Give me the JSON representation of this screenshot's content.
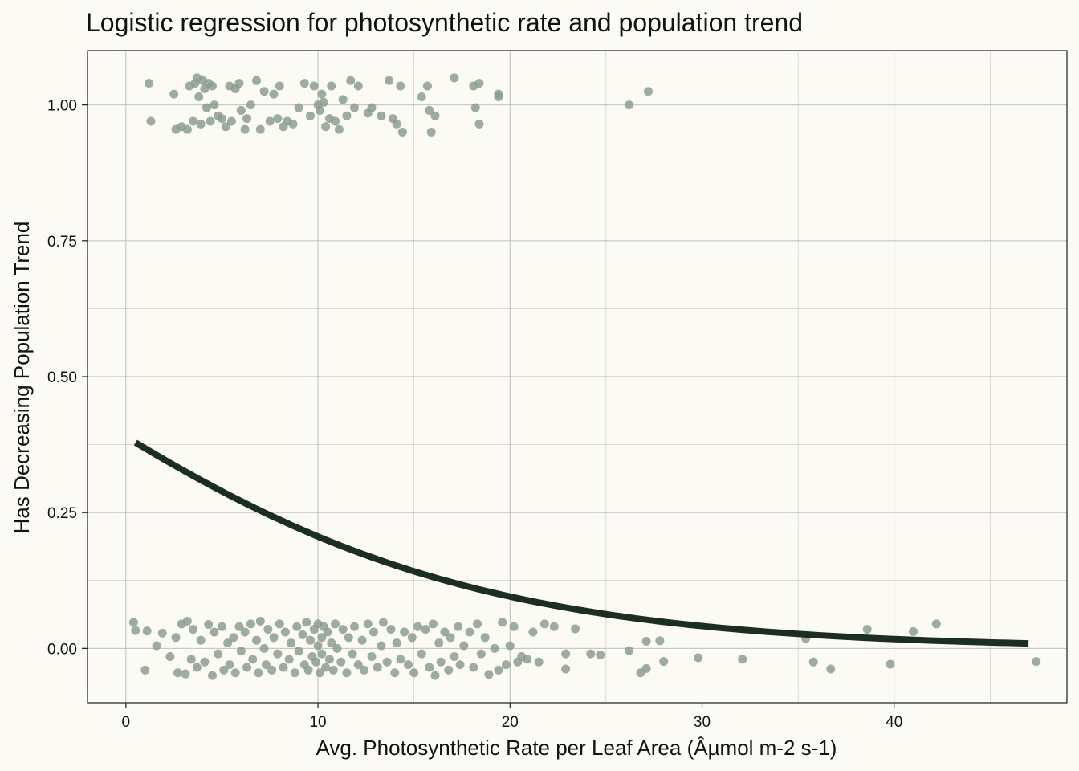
{
  "chart_data": {
    "type": "scatter",
    "title": "Logistic regression for photosynthetic rate and population trend",
    "xlabel": "Avg. Photosynthetic Rate per Leaf Area (Âµmol m-2 s-1)",
    "ylabel": "Has Decreasing Population Trend",
    "xlim": [
      -2,
      49
    ],
    "ylim": [
      -0.1,
      1.1
    ],
    "x_ticks": [
      0,
      10,
      20,
      30,
      40
    ],
    "x_tick_labels": [
      "0",
      "10",
      "20",
      "30",
      "40"
    ],
    "y_ticks": [
      0,
      0.25,
      0.5,
      0.75,
      1.0
    ],
    "y_tick_labels": [
      "0.00",
      "0.25",
      "0.50",
      "0.75",
      "1.00"
    ],
    "grid": true,
    "colors": {
      "background": "#fbfaf5",
      "points": "#879b8b",
      "curve": "#1c2e21",
      "grid": "#b8b8b4"
    },
    "series": [
      {
        "type": "scatter",
        "points": [
          [
            1.2,
            1.04
          ],
          [
            1.3,
            0.97
          ],
          [
            2.5,
            1.02
          ],
          [
            2.6,
            0.955
          ],
          [
            2.9,
            0.96
          ],
          [
            3.2,
            0.955
          ],
          [
            3.3,
            1.035
          ],
          [
            3.5,
            0.97
          ],
          [
            3.6,
            1.04
          ],
          [
            3.7,
            1.05
          ],
          [
            3.8,
            1.015
          ],
          [
            3.9,
            0.965
          ],
          [
            4.0,
            1.045
          ],
          [
            4.1,
            1.03
          ],
          [
            4.2,
            0.995
          ],
          [
            4.3,
            1.04
          ],
          [
            4.4,
            0.97
          ],
          [
            4.5,
            1.035
          ],
          [
            4.6,
            1.0
          ],
          [
            4.8,
            0.98
          ],
          [
            5.0,
            0.975
          ],
          [
            5.2,
            0.96
          ],
          [
            5.4,
            1.035
          ],
          [
            5.5,
            0.97
          ],
          [
            5.7,
            1.03
          ],
          [
            5.9,
            1.04
          ],
          [
            6.0,
            0.99
          ],
          [
            6.2,
            0.955
          ],
          [
            6.3,
            0.975
          ],
          [
            6.5,
            1.0
          ],
          [
            6.8,
            1.045
          ],
          [
            7.0,
            0.955
          ],
          [
            7.2,
            1.025
          ],
          [
            7.5,
            0.97
          ],
          [
            7.7,
            1.02
          ],
          [
            7.9,
            0.975
          ],
          [
            8.0,
            1.035
          ],
          [
            8.2,
            0.96
          ],
          [
            8.4,
            0.97
          ],
          [
            8.7,
            0.965
          ],
          [
            9.0,
            0.995
          ],
          [
            9.3,
            1.04
          ],
          [
            9.6,
            0.98
          ],
          [
            9.8,
            1.035
          ],
          [
            10.0,
            1.0
          ],
          [
            10.1,
            0.99
          ],
          [
            10.2,
            1.02
          ],
          [
            10.3,
            1.005
          ],
          [
            10.4,
            0.96
          ],
          [
            10.6,
            0.975
          ],
          [
            10.7,
            1.035
          ],
          [
            10.9,
            0.97
          ],
          [
            11.1,
            0.955
          ],
          [
            11.3,
            1.01
          ],
          [
            11.5,
            0.98
          ],
          [
            11.7,
            1.045
          ],
          [
            11.9,
            0.995
          ],
          [
            12.1,
            1.035
          ],
          [
            12.6,
            0.985
          ],
          [
            12.8,
            0.995
          ],
          [
            13.3,
            0.98
          ],
          [
            13.7,
            1.045
          ],
          [
            13.9,
            0.975
          ],
          [
            14.1,
            0.965
          ],
          [
            14.3,
            1.035
          ],
          [
            14.4,
            0.95
          ],
          [
            15.4,
            1.015
          ],
          [
            15.7,
            1.035
          ],
          [
            15.8,
            0.99
          ],
          [
            15.9,
            0.95
          ],
          [
            16.1,
            0.98
          ],
          [
            17.1,
            1.05
          ],
          [
            18.1,
            1.035
          ],
          [
            18.2,
            0.995
          ],
          [
            18.4,
            1.04
          ],
          [
            18.4,
            0.965
          ],
          [
            19.4,
            1.02
          ],
          [
            19.4,
            1.015
          ],
          [
            26.2,
            1.0
          ],
          [
            27.2,
            1.025
          ],
          [
            0.4,
            0.048
          ],
          [
            0.5,
            0.033
          ],
          [
            1.0,
            -0.04
          ],
          [
            1.1,
            0.032
          ],
          [
            1.6,
            0.005
          ],
          [
            1.9,
            0.028
          ],
          [
            2.3,
            -0.015
          ],
          [
            2.6,
            0.02
          ],
          [
            2.7,
            -0.045
          ],
          [
            2.9,
            0.045
          ],
          [
            3.1,
            -0.047
          ],
          [
            3.2,
            0.05
          ],
          [
            3.4,
            -0.02
          ],
          [
            3.5,
            0.035
          ],
          [
            3.7,
            -0.035
          ],
          [
            3.9,
            0.015
          ],
          [
            4.1,
            -0.025
          ],
          [
            4.3,
            0.044
          ],
          [
            4.5,
            -0.05
          ],
          [
            4.6,
            0.03
          ],
          [
            4.8,
            -0.01
          ],
          [
            5.0,
            0.04
          ],
          [
            5.1,
            -0.04
          ],
          [
            5.3,
            0.01
          ],
          [
            5.4,
            -0.03
          ],
          [
            5.6,
            0.02
          ],
          [
            5.7,
            -0.045
          ],
          [
            5.9,
            0.04
          ],
          [
            6.0,
            -0.005
          ],
          [
            6.2,
            0.03
          ],
          [
            6.3,
            -0.035
          ],
          [
            6.5,
            0.045
          ],
          [
            6.6,
            -0.02
          ],
          [
            6.8,
            0.015
          ],
          [
            6.9,
            -0.045
          ],
          [
            7.0,
            0.05
          ],
          [
            7.2,
            0.0
          ],
          [
            7.3,
            -0.03
          ],
          [
            7.4,
            0.035
          ],
          [
            7.6,
            -0.04
          ],
          [
            7.7,
            0.02
          ],
          [
            7.9,
            -0.01
          ],
          [
            8.0,
            0.045
          ],
          [
            8.2,
            -0.035
          ],
          [
            8.3,
            0.03
          ],
          [
            8.5,
            -0.02
          ],
          [
            8.6,
            0.01
          ],
          [
            8.8,
            -0.045
          ],
          [
            8.9,
            0.04
          ],
          [
            9.0,
            -0.005
          ],
          [
            9.2,
            0.025
          ],
          [
            9.3,
            -0.03
          ],
          [
            9.4,
            0.048
          ],
          [
            9.5,
            -0.04
          ],
          [
            9.6,
            0.015
          ],
          [
            9.7,
            -0.015
          ],
          [
            9.8,
            0.035
          ],
          [
            9.9,
            -0.025
          ],
          [
            10.0,
            0.045
          ],
          [
            10.0,
            0.005
          ],
          [
            10.1,
            -0.045
          ],
          [
            10.2,
            0.02
          ],
          [
            10.2,
            -0.01
          ],
          [
            10.3,
            0.04
          ],
          [
            10.4,
            -0.035
          ],
          [
            10.5,
            0.03
          ],
          [
            10.6,
            -0.02
          ],
          [
            10.7,
            0.01
          ],
          [
            10.8,
            -0.04
          ],
          [
            10.9,
            0.045
          ],
          [
            11.0,
            0.0
          ],
          [
            11.2,
            -0.025
          ],
          [
            11.3,
            0.035
          ],
          [
            11.5,
            -0.045
          ],
          [
            11.6,
            0.02
          ],
          [
            11.8,
            -0.01
          ],
          [
            11.9,
            0.04
          ],
          [
            12.1,
            -0.03
          ],
          [
            12.3,
            0.015
          ],
          [
            12.4,
            -0.04
          ],
          [
            12.6,
            0.045
          ],
          [
            12.8,
            -0.015
          ],
          [
            12.9,
            0.03
          ],
          [
            13.1,
            -0.035
          ],
          [
            13.3,
            0.005
          ],
          [
            13.4,
            0.048
          ],
          [
            13.6,
            -0.025
          ],
          [
            13.8,
            0.035
          ],
          [
            14.0,
            -0.045
          ],
          [
            14.1,
            0.01
          ],
          [
            14.3,
            -0.02
          ],
          [
            14.5,
            0.03
          ],
          [
            14.7,
            -0.03
          ],
          [
            14.9,
            0.02
          ],
          [
            15.0,
            -0.045
          ],
          [
            15.2,
            0.04
          ],
          [
            15.4,
            -0.01
          ],
          [
            15.6,
            0.035
          ],
          [
            15.8,
            -0.035
          ],
          [
            16.0,
            0.045
          ],
          [
            16.1,
            -0.05
          ],
          [
            16.3,
            0.01
          ],
          [
            16.4,
            -0.025
          ],
          [
            16.6,
            0.03
          ],
          [
            16.8,
            -0.04
          ],
          [
            16.9,
            0.02
          ],
          [
            17.1,
            -0.015
          ],
          [
            17.3,
            0.04
          ],
          [
            17.4,
            -0.03
          ],
          [
            17.6,
            0.005
          ],
          [
            17.9,
            0.03
          ],
          [
            18.1,
            -0.035
          ],
          [
            18.3,
            0.045
          ],
          [
            18.5,
            -0.01
          ],
          [
            18.7,
            0.02
          ],
          [
            18.9,
            -0.048
          ],
          [
            19.2,
            0.0
          ],
          [
            19.4,
            -0.04
          ],
          [
            19.6,
            0.048
          ],
          [
            19.8,
            -0.03
          ],
          [
            20.0,
            0.005
          ],
          [
            20.2,
            0.04
          ],
          [
            20.4,
            -0.025
          ],
          [
            20.6,
            -0.015
          ],
          [
            20.9,
            -0.02
          ],
          [
            21.2,
            0.03
          ],
          [
            21.5,
            -0.025
          ],
          [
            21.8,
            0.045
          ],
          [
            22.3,
            0.04
          ],
          [
            22.9,
            -0.01
          ],
          [
            22.9,
            -0.038
          ],
          [
            23.4,
            0.036
          ],
          [
            24.2,
            -0.01
          ],
          [
            24.7,
            -0.012
          ],
          [
            26.2,
            -0.004
          ],
          [
            26.8,
            -0.045
          ],
          [
            27.1,
            0.013
          ],
          [
            27.1,
            -0.037
          ],
          [
            27.8,
            0.014
          ],
          [
            28.0,
            -0.024
          ],
          [
            29.8,
            -0.017
          ],
          [
            32.1,
            -0.02
          ],
          [
            35.4,
            0.018
          ],
          [
            35.8,
            -0.025
          ],
          [
            36.7,
            -0.038
          ],
          [
            38.6,
            0.035
          ],
          [
            39.8,
            -0.029
          ],
          [
            41.0,
            0.031
          ],
          [
            42.2,
            0.045
          ],
          [
            47.4,
            -0.024
          ]
        ]
      },
      {
        "type": "line",
        "curve": "logistic",
        "intercept": -0.45,
        "slope": -0.09,
        "x_range": [
          0.5,
          47
        ]
      }
    ]
  }
}
